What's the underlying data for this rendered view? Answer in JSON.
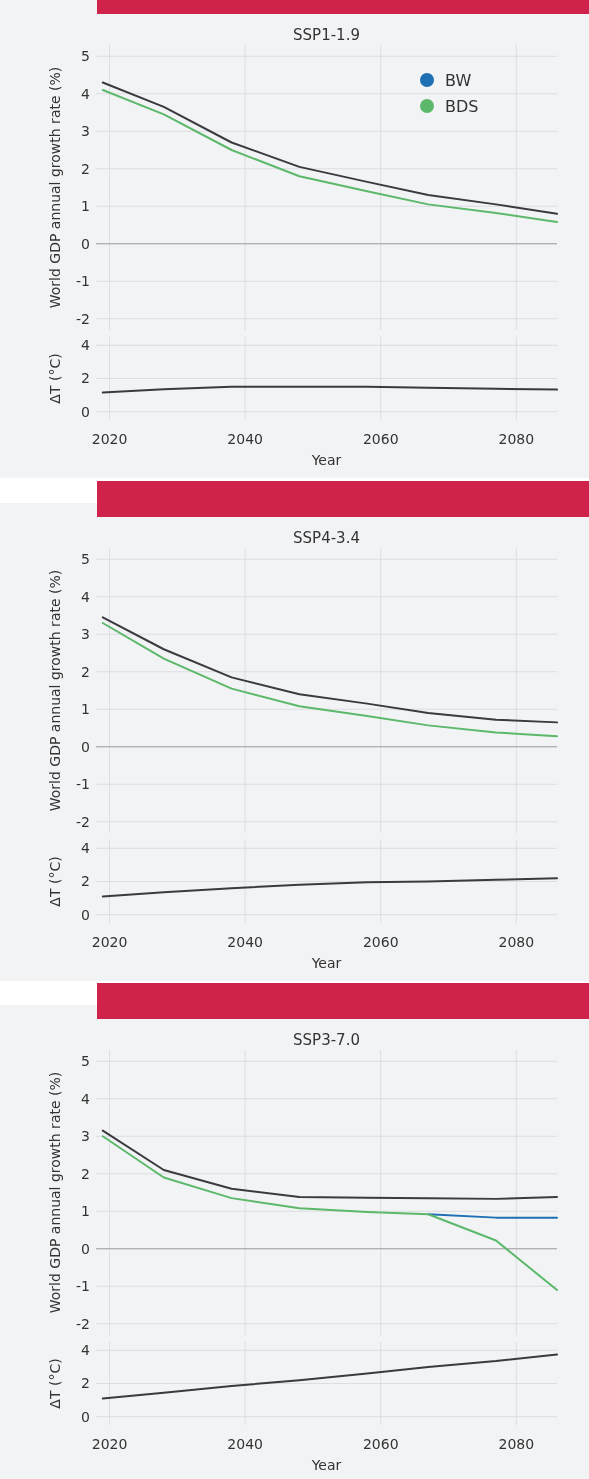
{
  "chart_data": [
    {
      "type": "line",
      "title": "SSP1-1.9",
      "ylabel": "World GDP annual growth rate (%)",
      "x": [
        2019,
        2028,
        2038,
        2048,
        2058,
        2067,
        2077,
        2086
      ],
      "xlim": [
        2018,
        2086
      ],
      "xticks": [
        2020,
        2040,
        2060,
        2080
      ],
      "ylim": [
        -2.3,
        5.3
      ],
      "yticks": [
        -2,
        -1,
        0,
        1,
        2,
        3,
        4,
        5
      ],
      "grid": true,
      "tick_labels": "y",
      "legend": "top right",
      "ref_lines": [
        {
          "axis": "y",
          "value": 0,
          "color": "#a0a0a4"
        }
      ],
      "series": [
        {
          "color": "#3a3a40",
          "values": [
            4.3,
            3.65,
            2.7,
            2.05,
            1.65,
            1.3,
            1.05,
            0.8
          ]
        },
        {
          "name": "BW",
          "color": "#1f6fb4",
          "values": [
            null,
            null,
            null,
            null,
            null,
            null,
            null,
            null
          ]
        },
        {
          "name": "BDS",
          "color": "#5cb86a",
          "values": [
            4.1,
            3.45,
            2.5,
            1.8,
            1.4,
            1.05,
            0.82,
            0.58
          ]
        }
      ]
    },
    {
      "type": "line",
      "xlabel": "Year",
      "ylabel": "ΔT (°C)",
      "x": [
        2019,
        2028,
        2038,
        2048,
        2058,
        2067,
        2077,
        2086
      ],
      "xlim": [
        2018,
        2086
      ],
      "xticks": [
        2020,
        2040,
        2060,
        2080
      ],
      "ylim": [
        -0.5,
        4.5
      ],
      "yticks": [
        0,
        2,
        4
      ],
      "grid": true,
      "series": [
        {
          "color": "#3a3a40",
          "values": [
            1.15,
            1.35,
            1.5,
            1.5,
            1.5,
            1.45,
            1.38,
            1.33
          ]
        }
      ]
    },
    {
      "type": "line",
      "title": "SSP4-3.4",
      "ylabel": "World GDP annual growth rate (%)",
      "x": [
        2019,
        2028,
        2038,
        2048,
        2058,
        2067,
        2077,
        2086
      ],
      "xlim": [
        2018,
        2086
      ],
      "xticks": [
        2020,
        2040,
        2060,
        2080
      ],
      "ylim": [
        -2.3,
        5.3
      ],
      "yticks": [
        -2,
        -1,
        0,
        1,
        2,
        3,
        4,
        5
      ],
      "grid": true,
      "tick_labels": "y",
      "ref_lines": [
        {
          "axis": "y",
          "value": 0,
          "color": "#a0a0a4"
        }
      ],
      "series": [
        {
          "color": "#3a3a40",
          "values": [
            3.45,
            2.6,
            1.85,
            1.4,
            1.15,
            0.9,
            0.72,
            0.65
          ]
        },
        {
          "color": "#5cb86a",
          "values": [
            3.3,
            2.35,
            1.55,
            1.08,
            0.82,
            0.57,
            0.38,
            0.28
          ]
        }
      ]
    },
    {
      "type": "line",
      "xlabel": "Year",
      "ylabel": "ΔT (°C)",
      "x": [
        2019,
        2028,
        2038,
        2048,
        2058,
        2067,
        2077,
        2086
      ],
      "xlim": [
        2018,
        2086
      ],
      "xticks": [
        2020,
        2040,
        2060,
        2080
      ],
      "ylim": [
        -0.5,
        4.5
      ],
      "yticks": [
        0,
        2,
        4
      ],
      "grid": true,
      "series": [
        {
          "color": "#3a3a40",
          "values": [
            1.1,
            1.35,
            1.6,
            1.8,
            1.95,
            2.0,
            2.1,
            2.2
          ]
        }
      ]
    },
    {
      "type": "line",
      "title": "SSP3-7.0",
      "ylabel": "World GDP annual growth rate (%)",
      "x": [
        2019,
        2028,
        2038,
        2048,
        2058,
        2067,
        2077,
        2086
      ],
      "xlim": [
        2018,
        2086
      ],
      "xticks": [
        2020,
        2040,
        2060,
        2080
      ],
      "ylim": [
        -2.3,
        5.3
      ],
      "yticks": [
        -2,
        -1,
        0,
        1,
        2,
        3,
        4,
        5
      ],
      "grid": true,
      "tick_labels": "y",
      "ref_lines": [
        {
          "axis": "y",
          "value": 0,
          "color": "#a0a0a4"
        }
      ],
      "series": [
        {
          "color": "#3a3a40",
          "values": [
            3.15,
            2.1,
            1.6,
            1.38,
            1.36,
            1.35,
            1.33,
            1.38
          ]
        },
        {
          "color": "#1f6fb4",
          "values": [
            null,
            null,
            null,
            null,
            null,
            0.92,
            0.83,
            0.83
          ]
        },
        {
          "color": "#5cb86a",
          "values": [
            3.0,
            1.9,
            1.35,
            1.08,
            0.98,
            0.92,
            0.22,
            -1.1
          ]
        }
      ]
    },
    {
      "type": "line",
      "xlabel": "Year",
      "ylabel": "ΔT (°C)",
      "x": [
        2019,
        2028,
        2038,
        2048,
        2058,
        2067,
        2077,
        2086
      ],
      "xlim": [
        2018,
        2086
      ],
      "xticks": [
        2020,
        2040,
        2060,
        2080
      ],
      "ylim": [
        -0.5,
        4.5
      ],
      "yticks": [
        0,
        2,
        4
      ],
      "grid": true,
      "series": [
        {
          "color": "#3a3a40",
          "values": [
            1.1,
            1.45,
            1.85,
            2.2,
            2.6,
            3.0,
            3.35,
            3.75
          ]
        }
      ]
    }
  ]
}
